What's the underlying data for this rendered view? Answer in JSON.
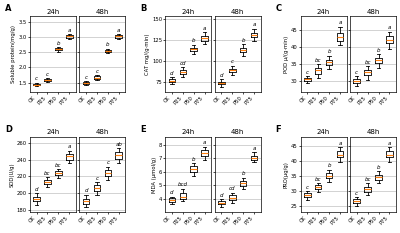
{
  "chart_data": [
    {
      "type": "box",
      "panel_label": "A",
      "title": "24h",
      "ylabel": "Soluble protein(mg/g)",
      "categories": [
        "CK",
        "P25",
        "P50",
        "P75"
      ],
      "values": [
        [
          1.38,
          1.42,
          1.47,
          1.44,
          1.4,
          1.5
        ],
        [
          1.52,
          1.58,
          1.63,
          1.55,
          1.6,
          1.65
        ],
        [
          2.53,
          2.63,
          2.68,
          2.58,
          2.65,
          2.6
        ],
        [
          2.93,
          3.02,
          3.08,
          2.97,
          3.05,
          3.1
        ]
      ],
      "letters": [
        "c",
        "c",
        "b",
        "a"
      ],
      "ylim": [
        1.2,
        3.7
      ],
      "yticks": [
        1.5,
        2.0,
        2.5,
        3.0,
        3.5
      ],
      "grid": true
    },
    {
      "type": "box",
      "title": "48h",
      "categories": [
        "CK",
        "P25",
        "P50",
        "P75"
      ],
      "values": [
        [
          1.43,
          1.48,
          1.53,
          1.46,
          1.5,
          1.55
        ],
        [
          1.58,
          1.65,
          1.72,
          1.62,
          1.68,
          1.74
        ],
        [
          2.48,
          2.57,
          2.63,
          2.52,
          2.6,
          2.55
        ],
        [
          2.93,
          3.02,
          3.1,
          2.97,
          3.06,
          3.08
        ]
      ],
      "letters": [
        "c",
        "c",
        "b",
        "a"
      ],
      "ylim": [
        1.2,
        3.7
      ],
      "yticks": [
        1.5,
        2.0,
        2.5,
        3.0,
        3.5
      ],
      "grid": true,
      "tick_labels": "x"
    },
    {
      "type": "box",
      "panel_label": "B",
      "title": "24h",
      "ylabel": "CAT mg/(g·min)",
      "categories": [
        "CK",
        "P25",
        "P50",
        "P75"
      ],
      "values": [
        [
          72,
          75,
          80,
          74,
          78,
          76
        ],
        [
          80,
          86,
          92,
          83,
          89,
          87
        ],
        [
          108,
          114,
          119,
          111,
          116,
          113
        ],
        [
          120,
          127,
          134,
          123,
          130,
          128
        ]
      ],
      "letters": [
        "d",
        "cd",
        "b",
        "a"
      ],
      "ylim": [
        63,
        153
      ],
      "yticks": [
        75,
        100,
        125,
        150
      ],
      "grid": true
    },
    {
      "type": "box",
      "title": "48h",
      "categories": [
        "CK",
        "P25",
        "P50",
        "P75"
      ],
      "values": [
        [
          69,
          73,
          78,
          71,
          75,
          73
        ],
        [
          83,
          89,
          94,
          86,
          91,
          89
        ],
        [
          106,
          113,
          120,
          110,
          116,
          113
        ],
        [
          123,
          130,
          138,
          127,
          134,
          132
        ]
      ],
      "letters": [
        "d",
        "c",
        "b",
        "a"
      ],
      "ylim": [
        63,
        153
      ],
      "yticks": [
        75,
        100,
        125,
        150
      ],
      "grid": true,
      "tick_labels": "x"
    },
    {
      "type": "box",
      "panel_label": "C",
      "title": "24h",
      "ylabel": "POD μ/(g·min)",
      "categories": [
        "CK",
        "P25",
        "P50",
        "P75"
      ],
      "values": [
        [
          29.5,
          30.5,
          31.5,
          30.0,
          31.0,
          30.8
        ],
        [
          31.0,
          33.0,
          35.0,
          32.0,
          34.0,
          33.5
        ],
        [
          33.5,
          35.5,
          37.5,
          34.5,
          36.5,
          35.8
        ],
        [
          40.5,
          43.0,
          46.0,
          41.5,
          44.5,
          43.0
        ]
      ],
      "letters": [
        "c",
        "bc",
        "b",
        "a"
      ],
      "ylim": [
        27,
        49
      ],
      "yticks": [
        30,
        35,
        40,
        45
      ],
      "grid": true
    },
    {
      "type": "box",
      "title": "48h",
      "categories": [
        "CK",
        "P25",
        "P50",
        "P75"
      ],
      "values": [
        [
          28.5,
          30.0,
          31.5,
          29.5,
          30.8,
          30.2
        ],
        [
          30.5,
          32.5,
          34.5,
          31.5,
          33.5,
          32.8
        ],
        [
          34.0,
          36.0,
          38.0,
          35.0,
          37.0,
          36.2
        ],
        [
          39.5,
          42.0,
          44.5,
          41.0,
          43.5,
          42.0
        ]
      ],
      "letters": [
        "c",
        "bc",
        "b",
        "a"
      ],
      "ylim": [
        27,
        49
      ],
      "yticks": [
        30,
        35,
        40,
        45
      ],
      "grid": true,
      "tick_labels": "x"
    },
    {
      "type": "box",
      "panel_label": "D",
      "title": "24h",
      "ylabel": "SOD(U/g)",
      "categories": [
        "CK",
        "P25",
        "P50",
        "P75"
      ],
      "values": [
        [
          186,
          193,
          200,
          189,
          196,
          192
        ],
        [
          207,
          214,
          219,
          210,
          217,
          213
        ],
        [
          218,
          225,
          229,
          221,
          227,
          224
        ],
        [
          236,
          244,
          251,
          239,
          248,
          245
        ]
      ],
      "letters": [
        "d",
        "bc",
        "bc",
        "a"
      ],
      "ylim": [
        177,
        268
      ],
      "yticks": [
        180,
        200,
        220,
        240,
        260
      ],
      "grid": true
    },
    {
      "type": "box",
      "title": "48h",
      "categories": [
        "CK",
        "P25",
        "P50",
        "P75"
      ],
      "values": [
        [
          183,
          190,
          198,
          186,
          194,
          191
        ],
        [
          198,
          206,
          213,
          202,
          210,
          207
        ],
        [
          216,
          224,
          232,
          220,
          228,
          225
        ],
        [
          236,
          244,
          254,
          240,
          250,
          247
        ]
      ],
      "letters": [
        "d",
        "c",
        "c",
        "ab"
      ],
      "ylim": [
        177,
        268
      ],
      "yticks": [
        180,
        200,
        220,
        240,
        260
      ],
      "grid": true,
      "tick_labels": "x"
    },
    {
      "type": "box",
      "panel_label": "E",
      "title": "24h",
      "ylabel": "MDA (μmol/g)",
      "categories": [
        "CK",
        "P25",
        "P50",
        "P75"
      ],
      "values": [
        [
          3.6,
          3.85,
          4.15,
          3.75,
          4.05,
          3.9
        ],
        [
          3.8,
          4.1,
          4.75,
          3.95,
          4.5,
          4.2
        ],
        [
          5.7,
          6.15,
          6.65,
          5.9,
          6.45,
          6.2
        ],
        [
          6.9,
          7.35,
          7.85,
          7.1,
          7.65,
          7.4
        ]
      ],
      "letters": [
        "d",
        "bcd",
        "b",
        "a"
      ],
      "ylim": [
        3.0,
        8.6
      ],
      "yticks": [
        4,
        5,
        6,
        7,
        8
      ],
      "grid": true
    },
    {
      "type": "box",
      "title": "48h",
      "categories": [
        "CK",
        "P25",
        "P50",
        "P75"
      ],
      "values": [
        [
          3.4,
          3.7,
          3.95,
          3.55,
          3.85,
          3.7
        ],
        [
          3.7,
          4.0,
          4.45,
          3.85,
          4.3,
          4.05
        ],
        [
          4.7,
          5.1,
          5.55,
          4.9,
          5.4,
          5.15
        ],
        [
          6.7,
          7.05,
          7.45,
          6.85,
          7.25,
          7.05
        ]
      ],
      "letters": [
        "d",
        "cd",
        "b",
        "a"
      ],
      "ylim": [
        3.0,
        8.6
      ],
      "yticks": [
        4,
        5,
        6,
        7,
        8
      ],
      "grid": true,
      "tick_labels": "x"
    },
    {
      "type": "box",
      "panel_label": "F",
      "title": "24h",
      "ylabel": "PRO(μg/g)",
      "categories": [
        "CK",
        "P25",
        "P50",
        "P75"
      ],
      "values": [
        [
          27.0,
          28.5,
          30.0,
          28.0,
          29.5,
          29.0
        ],
        [
          29.5,
          31.0,
          32.5,
          30.5,
          32.0,
          31.3
        ],
        [
          33.0,
          35.0,
          37.0,
          34.0,
          36.0,
          35.2
        ],
        [
          39.5,
          42.0,
          44.5,
          41.0,
          43.5,
          42.2
        ]
      ],
      "letters": [
        "c",
        "bc",
        "b",
        "a"
      ],
      "ylim": [
        23,
        48
      ],
      "yticks": [
        25,
        30,
        35,
        40,
        45
      ],
      "grid": true
    },
    {
      "type": "box",
      "title": "48h",
      "categories": [
        "CK",
        "P25",
        "P50",
        "P75"
      ],
      "values": [
        [
          25.0,
          26.5,
          28.0,
          26.0,
          27.5,
          26.8
        ],
        [
          28.5,
          30.5,
          32.5,
          29.5,
          31.5,
          30.8
        ],
        [
          32.5,
          34.5,
          36.5,
          33.5,
          35.5,
          34.8
        ],
        [
          39.5,
          42.0,
          44.5,
          41.0,
          43.5,
          42.2
        ]
      ],
      "letters": [
        "c",
        "bc",
        "b",
        "a"
      ],
      "ylim": [
        23,
        48
      ],
      "yticks": [
        25,
        30,
        35,
        40,
        45
      ],
      "grid": true,
      "tick_labels": "x"
    }
  ]
}
